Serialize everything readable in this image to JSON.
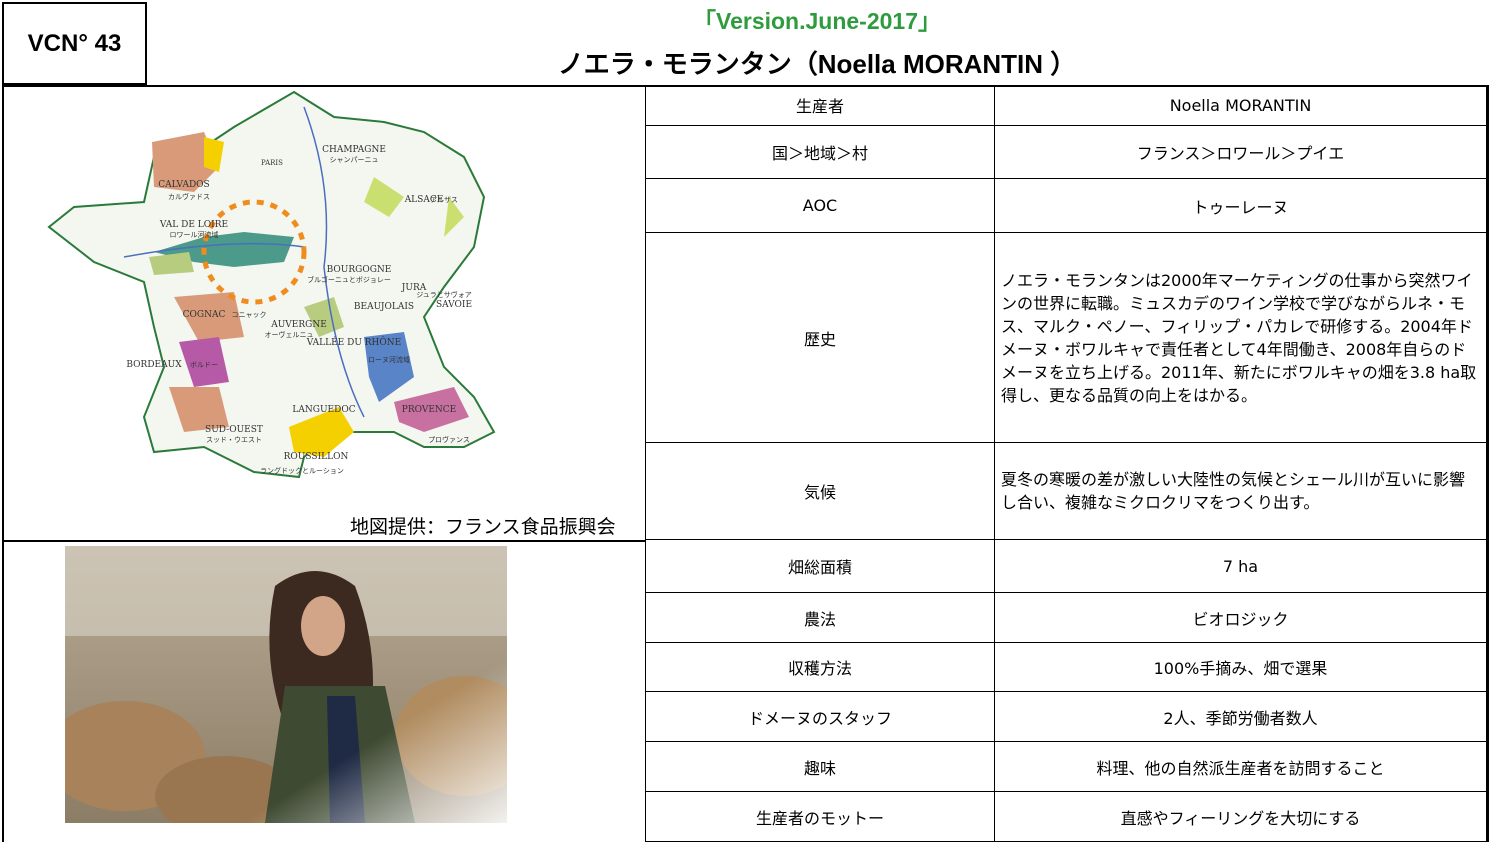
{
  "header": {
    "code": "VCN° 43",
    "version": "「Version.June-2017」",
    "title": "ノエラ・モランタン（Noella MORANTIN ）"
  },
  "map": {
    "labels": [
      "CALVADOS",
      "カルヴァドス",
      "CHAMPAGNE",
      "シャンパーニュ",
      "ALSACE",
      "アルザス",
      "VAL DE LOIRE",
      "ロワール河流域",
      "BOURGOGNE",
      "ブルゴーニュとボジョレー",
      "JURA",
      "ジュラとサヴォア",
      "SAVOIE",
      "BEAUJOLAIS",
      "COGNAC",
      "コニャック",
      "AUVERGNE",
      "オーヴェルニュ",
      "VALLÉE DU RHÔNE",
      "ローヌ河流域",
      "BORDEAUX",
      "ボルドー",
      "LANGUEDOC",
      "PROVENCE",
      "プロヴァンス",
      "SUD-OUEST",
      "スッド・ウエスト",
      "ROUSSILLON",
      "ラングドックとルーション",
      "PARIS"
    ],
    "caption": "地図提供：フランス食品振興会"
  },
  "table": {
    "rows": [
      [
        "生産者",
        "Noella MORANTIN"
      ],
      [
        "国＞地域＞村",
        "フランス＞ロワール＞プイエ"
      ],
      [
        "AOC",
        "トゥーレーヌ"
      ],
      [
        "歴史",
        "ノエラ・モランタンは2000年マーケティングの仕事から突然ワインの世界に転職。ミュスカデのワイン学校で学びながらルネ・モス、マルク・ペノー、フィリップ・パカレで研修する。2004年ドメーヌ・ボワルキャで責任者として4年間働き、2008年自らのドメーヌを立ち上げる。2011年、新たにボワルキャの畑を3.8 ha取得し、更なる品質の向上をはかる。"
      ],
      [
        "気候",
        "夏冬の寒暖の差が激しい大陸性の気候とシェール川が互いに影響し合い、複雑なミクロクリマをつくり出す。"
      ],
      [
        "畑総面積",
        "7 ha"
      ],
      [
        "農法",
        "ビオロジック"
      ],
      [
        "収穫方法",
        "100%手摘み、畑で選果"
      ],
      [
        "ドメーヌのスタッフ",
        "2人、季節労働者数人"
      ],
      [
        "趣味",
        "料理、他の自然派生産者を訪問すること"
      ],
      [
        "生産者のモットー",
        "直感やフィーリングを大切にする"
      ]
    ]
  }
}
